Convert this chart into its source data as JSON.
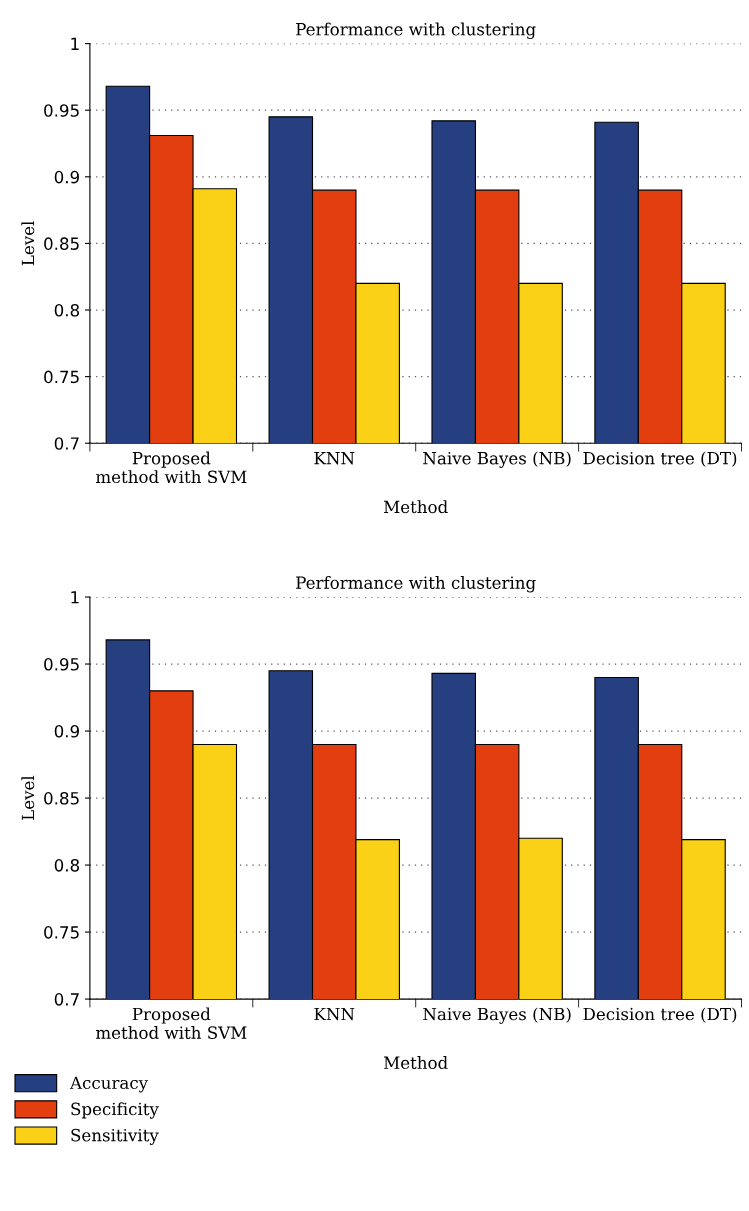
{
  "chart_data": [
    {
      "type": "bar",
      "title": "Performance with clustering",
      "xlabel": "Method",
      "ylabel": "Level",
      "categories": [
        "Proposed\nmethod with SVM",
        "KNN",
        "Naive Bayes (NB)",
        "Decision tree (DT)"
      ],
      "series": [
        {
          "color": "#253f80",
          "values": [
            0.968,
            0.945,
            0.942,
            0.941
          ]
        },
        {
          "color": "#e33e10",
          "values": [
            0.931,
            0.89,
            0.89,
            0.89
          ]
        },
        {
          "color": "#fad116",
          "values": [
            0.891,
            0.82,
            0.82,
            0.82
          ]
        }
      ],
      "ylim": [
        0.7,
        1
      ],
      "yticks": [
        0.7,
        0.75,
        0.8,
        0.85,
        0.9,
        0.95,
        1
      ],
      "grid": "y"
    },
    {
      "type": "bar",
      "title": "Performance with clustering",
      "xlabel": "Method",
      "ylabel": "Level",
      "categories": [
        "Proposed\nmethod with SVM",
        "KNN",
        "Naive Bayes (NB)",
        "Decision tree (DT)"
      ],
      "series": [
        {
          "name": "Accuracy",
          "color": "#253f80",
          "values": [
            0.968,
            0.945,
            0.943,
            0.94
          ]
        },
        {
          "name": "Specificity",
          "color": "#e33e10",
          "values": [
            0.93,
            0.89,
            0.89,
            0.89
          ]
        },
        {
          "name": "Sensitivity",
          "color": "#fad116",
          "values": [
            0.89,
            0.819,
            0.82,
            0.819
          ]
        }
      ],
      "ylim": [
        0.7,
        1
      ],
      "yticks": [
        0.7,
        0.75,
        0.8,
        0.85,
        0.9,
        0.95,
        1
      ],
      "grid": "y",
      "legend": "bottom"
    }
  ]
}
